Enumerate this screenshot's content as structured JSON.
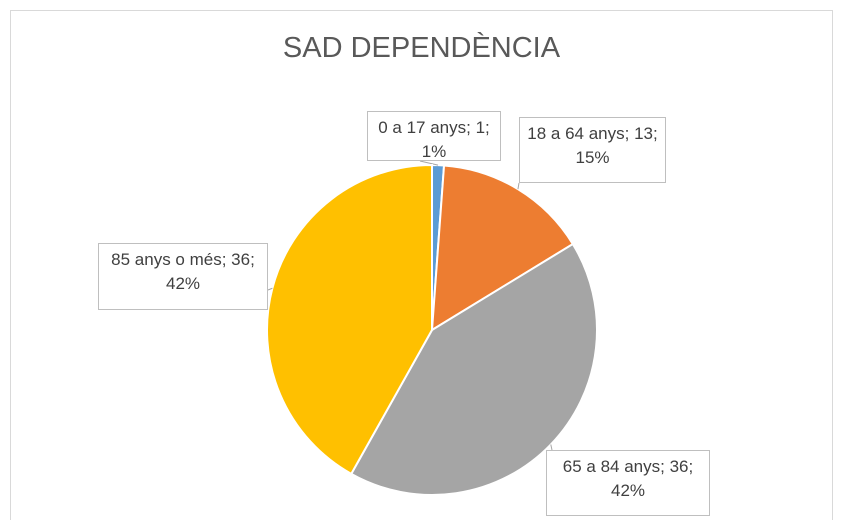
{
  "chart_data": {
    "type": "pie",
    "title": "SAD DEPENDÈNCIA",
    "categories": [
      "0 a 17 anys",
      "18 a 64 anys",
      "65 a 84 anys",
      "85 anys o més"
    ],
    "values": [
      1,
      13,
      36,
      36
    ],
    "value_labels": [
      "0 a 17 anys; 1; 1%",
      "18 a 64 anys; 13; 15%",
      "65 a 84 anys; 36; 42%",
      "85 anys o més; 36; 42%"
    ],
    "colors": [
      "#5b9bd5",
      "#ed7d31",
      "#a5a5a5",
      "#ffc000"
    ]
  }
}
